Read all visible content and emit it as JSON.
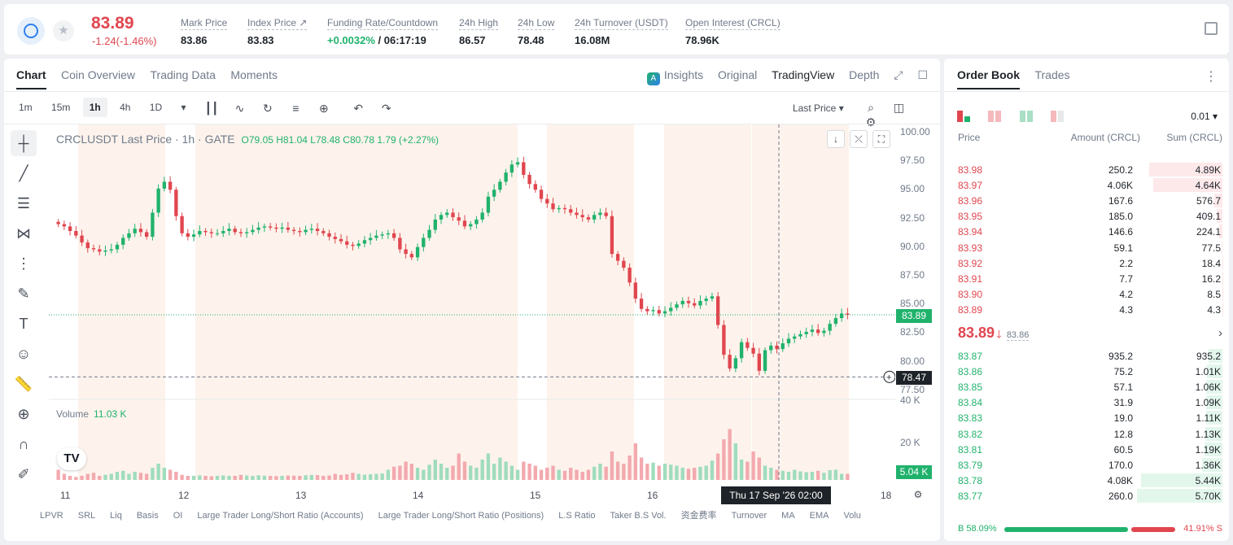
{
  "header": {
    "last_price": "83.89",
    "change": "-1.24(-1.46%)",
    "stats": [
      {
        "label": "Mark Price",
        "value": "83.86"
      },
      {
        "label": "Index Price ↗",
        "value": "83.83"
      },
      {
        "label": "Funding Rate/Countdown",
        "value_green": "+0.0032%",
        "value": " / 06:17:19"
      },
      {
        "label": "24h High",
        "value": "86.57"
      },
      {
        "label": "24h Low",
        "value": "78.48"
      },
      {
        "label": "24h Turnover (USDT)",
        "value": "16.08M"
      },
      {
        "label": "Open Interest (CRCL)",
        "value": "78.96K"
      }
    ]
  },
  "chart_tabs": [
    "Chart",
    "Coin Overview",
    "Trading Data",
    "Moments"
  ],
  "chart_views": [
    "Insights",
    "Original",
    "TradingView",
    "Depth"
  ],
  "intervals": [
    "1m",
    "15m",
    "1h",
    "4h",
    "1D"
  ],
  "last_price_select": "Last Price ▾",
  "legend": {
    "title": "CRCLUSDT Last Price · 1h · GATE",
    "ohlc": "O79.05 H81.04 L78.48 C80.78 1.79 (+2.27%)"
  },
  "volume_legend": {
    "label": "Volume",
    "value": "11.03 K"
  },
  "y_ticks": [
    "100.00",
    "97.50",
    "95.00",
    "92.50",
    "90.00",
    "87.50",
    "85.00",
    "82.50",
    "80.00",
    "77.50"
  ],
  "vol_ticks": [
    "40 K",
    "20 K"
  ],
  "price_tag": "83.89",
  "cross_tag": "78.47",
  "vol_tag": "5.04 K",
  "x_labels": [
    "11",
    "12",
    "13",
    "14",
    "15",
    "16",
    "18"
  ],
  "cross_time": "Thu 17 Sep '26   02:00",
  "indicators": [
    "LPVR",
    "SRL",
    "Liq",
    "Basis",
    "OI",
    "Large Trader Long/Short Ratio (Accounts)",
    "Large Trader Long/Short Ratio (Positions)",
    "L.S Ratio",
    "Taker B.S Vol.",
    "资金费率",
    "Turnover",
    "MA",
    "EMA",
    "Volu"
  ],
  "orderbook": {
    "tabs": [
      "Order Book",
      "Trades"
    ],
    "precision": "0.01",
    "headers": {
      "price": "Price",
      "amount": "Amount (CRCL)",
      "sum": "Sum (CRCL)"
    },
    "asks": [
      {
        "price": "83.98",
        "amount": "250.2",
        "sum": "4.89K",
        "depth": 0.86
      },
      {
        "price": "83.97",
        "amount": "4.06K",
        "sum": "4.64K",
        "depth": 0.81
      },
      {
        "price": "83.96",
        "amount": "167.6",
        "sum": "576.7",
        "depth": 0.1
      },
      {
        "price": "83.95",
        "amount": "185.0",
        "sum": "409.1",
        "depth": 0.07
      },
      {
        "price": "83.94",
        "amount": "146.6",
        "sum": "224.1",
        "depth": 0.04
      },
      {
        "price": "83.93",
        "amount": "59.1",
        "sum": "77.5",
        "depth": 0.013
      },
      {
        "price": "83.92",
        "amount": "2.2",
        "sum": "18.4",
        "depth": 0.004
      },
      {
        "price": "83.91",
        "amount": "7.7",
        "sum": "16.2",
        "depth": 0.003
      },
      {
        "price": "83.90",
        "amount": "4.2",
        "sum": "8.5",
        "depth": 0.002
      },
      {
        "price": "83.89",
        "amount": "4.3",
        "sum": "4.3",
        "depth": 0.001
      }
    ],
    "mid": {
      "price": "83.89",
      "arrow": "🡓",
      "mark": "83.86"
    },
    "bids": [
      {
        "price": "83.87",
        "amount": "935.2",
        "sum": "935.2",
        "depth": 0.16
      },
      {
        "price": "83.86",
        "amount": "75.2",
        "sum": "1.01K",
        "depth": 0.18
      },
      {
        "price": "83.85",
        "amount": "57.1",
        "sum": "1.06K",
        "depth": 0.19
      },
      {
        "price": "83.84",
        "amount": "31.9",
        "sum": "1.09K",
        "depth": 0.19
      },
      {
        "price": "83.83",
        "amount": "19.0",
        "sum": "1.11K",
        "depth": 0.19
      },
      {
        "price": "83.82",
        "amount": "12.8",
        "sum": "1.13K",
        "depth": 0.2
      },
      {
        "price": "83.81",
        "amount": "60.5",
        "sum": "1.19K",
        "depth": 0.21
      },
      {
        "price": "83.79",
        "amount": "170.0",
        "sum": "1.36K",
        "depth": 0.24
      },
      {
        "price": "83.78",
        "amount": "4.08K",
        "sum": "5.44K",
        "depth": 0.95
      },
      {
        "price": "83.77",
        "amount": "260.0",
        "sum": "5.70K",
        "depth": 1.0
      }
    ],
    "buy_ratio": "B 58.09%",
    "sell_ratio": "41.91% S"
  },
  "colors": {
    "up": "#20b26c",
    "down": "#e0464f"
  },
  "chart_data": {
    "type": "candlestick",
    "title": "CRCLUSDT Last Price · 1h · GATE",
    "ylim": [
      77.5,
      100
    ],
    "x_ticks": [
      "11",
      "12",
      "13",
      "14",
      "15",
      "16",
      "17",
      "18"
    ],
    "closes": [
      91.8,
      91.6,
      91.2,
      90.8,
      90.2,
      89.7,
      89.6,
      89.4,
      89.5,
      89.6,
      90.0,
      90.6,
      91.0,
      91.4,
      91.1,
      90.7,
      92.8,
      94.9,
      95.5,
      94.8,
      92.5,
      91.0,
      90.7,
      90.9,
      91.2,
      91.1,
      91.0,
      91.0,
      91.2,
      91.4,
      91.1,
      91.0,
      91.1,
      91.3,
      91.5,
      91.6,
      91.5,
      91.4,
      91.5,
      91.3,
      91.2,
      91.1,
      91.3,
      91.4,
      91.2,
      91.0,
      90.7,
      90.5,
      90.3,
      90.0,
      89.9,
      90.1,
      90.4,
      90.6,
      90.8,
      90.9,
      91.0,
      90.6,
      89.6,
      89.2,
      88.9,
      89.8,
      90.6,
      91.3,
      92.2,
      92.6,
      92.8,
      92.4,
      92.1,
      91.6,
      91.8,
      92.2,
      92.8,
      94.2,
      94.8,
      95.5,
      96.3,
      97.0,
      97.2,
      96.1,
      95.3,
      94.8,
      94.0,
      93.6,
      93.1,
      93.2,
      93.1,
      92.8,
      92.6,
      92.4,
      92.2,
      92.6,
      92.8,
      92.5,
      89.2,
      88.6,
      88.0,
      86.7,
      85.3,
      84.4,
      84.2,
      84.3,
      84.0,
      84.2,
      84.5,
      84.8,
      85.1,
      84.9,
      84.7,
      85.1,
      85.3,
      85.5,
      83.0,
      80.4,
      79.2,
      80.1,
      81.5,
      81.0,
      80.5,
      79.0,
      80.8,
      81.2,
      80.9,
      81.4,
      81.8,
      82.0,
      82.2,
      82.4,
      82.6,
      82.3,
      82.5,
      83.1,
      83.6,
      84.0,
      83.89
    ],
    "volumes": [
      5,
      3,
      2,
      1.5,
      2,
      3,
      3.5,
      2,
      2.5,
      3,
      4,
      4.5,
      3,
      4,
      3.5,
      3,
      6,
      8,
      6,
      5,
      4,
      2.5,
      2,
      2,
      2.2,
      2,
      1.8,
      2,
      2.2,
      2,
      2,
      2.5,
      2.2,
      2,
      2.3,
      2.1,
      2,
      1.9,
      2,
      2.2,
      2.1,
      2,
      2.3,
      2.5,
      2.4,
      2,
      2.2,
      3,
      2.5,
      2.8,
      3.5,
      3,
      2.6,
      2.8,
      3,
      3.2,
      5,
      6.5,
      7,
      9,
      8,
      6,
      5,
      7.5,
      10,
      8,
      6,
      7,
      13,
      9,
      7,
      6,
      10,
      13,
      8,
      11,
      9,
      7,
      5,
      9,
      8,
      7,
      5,
      6,
      7,
      5,
      4.5,
      6,
      5,
      4,
      5,
      6.5,
      8,
      6.5,
      14,
      9,
      8,
      12,
      18,
      11,
      8,
      8.5,
      7,
      8,
      7.5,
      7,
      6,
      5.5,
      6,
      6.5,
      7,
      9.5,
      13,
      20,
      25,
      18,
      10,
      9,
      14,
      11,
      7,
      6,
      5,
      4.5,
      4,
      5,
      4.2,
      3.8,
      4,
      4.5,
      3.5,
      4.8,
      5.04
    ],
    "last": 83.89,
    "crosshair_price": 78.47
  }
}
